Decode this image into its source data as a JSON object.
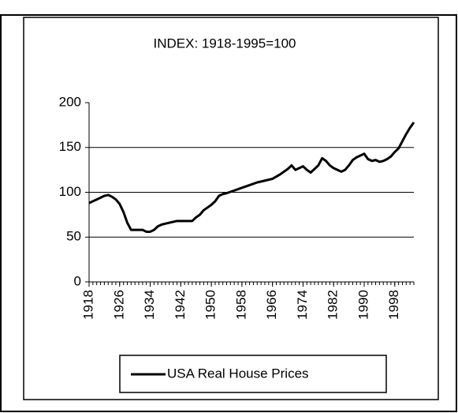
{
  "chart_data": {
    "type": "line",
    "subtitle": "INDEX: 1918-1995=100",
    "x": [
      1918,
      1920,
      1922,
      1923,
      1924,
      1925,
      1926,
      1927,
      1928,
      1929,
      1930,
      1931,
      1932,
      1933,
      1934,
      1935,
      1936,
      1937,
      1938,
      1939,
      1940,
      1941,
      1942,
      1944,
      1945,
      1946,
      1947,
      1948,
      1949,
      1950,
      1951,
      1952,
      1953,
      1954,
      1956,
      1958,
      1960,
      1962,
      1964,
      1966,
      1968,
      1970,
      1971,
      1972,
      1973,
      1974,
      1975,
      1976,
      1977,
      1978,
      1979,
      1980,
      1981,
      1982,
      1983,
      1984,
      1985,
      1986,
      1987,
      1988,
      1989,
      1990,
      1991,
      1992,
      1993,
      1994,
      1995,
      1996,
      1997,
      1998,
      1999,
      2000,
      2001,
      2002,
      2003
    ],
    "series": [
      {
        "name": "USA Real House Prices",
        "color": "#000000",
        "values": [
          88,
          92,
          96,
          97,
          95,
          92,
          87,
          78,
          66,
          58,
          58,
          58,
          58,
          56,
          56,
          58,
          62,
          64,
          65,
          66,
          67,
          68,
          68,
          68,
          68,
          72,
          75,
          80,
          83,
          86,
          90,
          96,
          98,
          99,
          102,
          105,
          108,
          111,
          113,
          115,
          120,
          126,
          130,
          125,
          127,
          129,
          125,
          122,
          126,
          130,
          138,
          135,
          130,
          127,
          125,
          123,
          125,
          130,
          136,
          139,
          141,
          143,
          137,
          135,
          136,
          134,
          135,
          137,
          140,
          145,
          149,
          157,
          165,
          172,
          178
        ]
      }
    ],
    "xlim": [
      1918,
      2003
    ],
    "xticks": [
      1918,
      1926,
      1934,
      1942,
      1950,
      1958,
      1966,
      1974,
      1982,
      1990,
      1998
    ],
    "ylim": [
      0,
      200
    ],
    "yticks": [
      0,
      50,
      100,
      150,
      200
    ],
    "grid": true
  }
}
